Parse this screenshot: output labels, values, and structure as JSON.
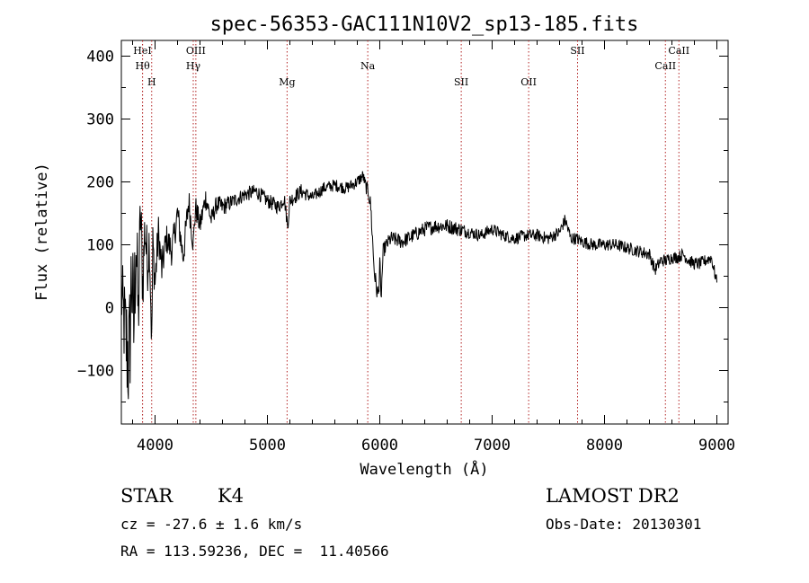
{
  "chart_data": {
    "type": "line",
    "title": "spec-56353-GAC111N10V2_sp13-185.fits",
    "xlabel": "Wavelength (Å)",
    "ylabel": "Flux (relative)",
    "xlim": [
      3700,
      9100
    ],
    "ylim": [
      -185,
      425
    ],
    "x_ticks": [
      4000,
      5000,
      6000,
      7000,
      8000,
      9000
    ],
    "y_ticks": [
      -100,
      0,
      100,
      200,
      300,
      400
    ],
    "grid": false,
    "series": [
      {
        "color": "#000000",
        "x": [
          3700,
          3740,
          3770,
          3790,
          3810,
          3830,
          3850,
          3870,
          3890,
          3910,
          3930,
          3950,
          3970,
          3980,
          4000,
          4030,
          4060,
          4100,
          4150,
          4200,
          4250,
          4300,
          4340,
          4360,
          4400,
          4450,
          4500,
          4550,
          4600,
          4700,
          4800,
          4900,
          5000,
          5100,
          5150,
          5180,
          5200,
          5300,
          5400,
          5500,
          5600,
          5700,
          5800,
          5850,
          5880,
          5900,
          5920,
          5950,
          5970,
          5990,
          6000,
          6010,
          6030,
          6060,
          6100,
          6200,
          6300,
          6400,
          6500,
          6600,
          6700,
          6800,
          6900,
          7000,
          7100,
          7200,
          7300,
          7400,
          7500,
          7600,
          7650,
          7700,
          7750,
          7800,
          7900,
          8000,
          8100,
          8200,
          8300,
          8400,
          8450,
          8500,
          8550,
          8600,
          8650,
          8700,
          8750,
          8800,
          8850,
          8900,
          8950,
          9000
        ],
        "y": [
          20,
          -50,
          -90,
          60,
          -40,
          120,
          -20,
          150,
          40,
          130,
          70,
          110,
          -60,
          100,
          40,
          120,
          60,
          110,
          90,
          150,
          80,
          170,
          100,
          160,
          130,
          175,
          140,
          165,
          160,
          170,
          180,
          185,
          170,
          160,
          175,
          130,
          170,
          185,
          175,
          190,
          195,
          190,
          200,
          210,
          190,
          185,
          160,
          60,
          30,
          20,
          80,
          10,
          90,
          100,
          110,
          105,
          115,
          125,
          130,
          130,
          125,
          120,
          115,
          125,
          115,
          110,
          115,
          115,
          110,
          120,
          140,
          110,
          110,
          105,
          100,
          100,
          100,
          95,
          90,
          85,
          60,
          75,
          75,
          80,
          80,
          85,
          75,
          70,
          70,
          75,
          80,
          40
        ],
        "noise": [
          60,
          90,
          120,
          110,
          100,
          100,
          80,
          70,
          60,
          60,
          55,
          50,
          40,
          40,
          35,
          30,
          30,
          25,
          25,
          25,
          25,
          25,
          20,
          20,
          20,
          18,
          15,
          15,
          15,
          12,
          12,
          12,
          12,
          12,
          12,
          12,
          12,
          12,
          10,
          10,
          10,
          10,
          10,
          10,
          10,
          15,
          15,
          15,
          15,
          15,
          15,
          15,
          12,
          12,
          12,
          12,
          12,
          12,
          12,
          12,
          12,
          10,
          10,
          10,
          10,
          10,
          10,
          10,
          10,
          10,
          10,
          10,
          10,
          10,
          10,
          10,
          10,
          10,
          10,
          10,
          10,
          10,
          10,
          10,
          10,
          10,
          10,
          10,
          10,
          10,
          10,
          10
        ]
      }
    ],
    "lines": [
      {
        "label": "HeI",
        "x": 3888,
        "row": 0,
        "side": "left"
      },
      {
        "label": "Hθ",
        "x": 3889,
        "row": 1,
        "side": "left"
      },
      {
        "label": "H",
        "x": 3970,
        "row": 2,
        "side": "left"
      },
      {
        "label": "OIII",
        "x": 4363,
        "row": 0,
        "side": "left"
      },
      {
        "label": "Hγ",
        "x": 4340,
        "row": 1,
        "side": "left"
      },
      {
        "label": "Mg",
        "x": 5175,
        "row": 2,
        "side": "left"
      },
      {
        "label": "Na",
        "x": 5893,
        "row": 1,
        "side": "left"
      },
      {
        "label": "SII",
        "x": 6725,
        "row": 2,
        "side": "left"
      },
      {
        "label": "OII",
        "x": 7325,
        "row": 2,
        "side": "left"
      },
      {
        "label": "SII",
        "x": 7760,
        "row": 0,
        "side": "left"
      },
      {
        "label": "CaII",
        "x": 8542,
        "row": 1,
        "side": "left"
      },
      {
        "label": "CaII",
        "x": 8662,
        "row": 0,
        "side": "left"
      }
    ]
  },
  "info": {
    "class_label": "STAR",
    "subclass_label": "K4",
    "survey_label": "LAMOST DR2",
    "cz_text": "cz = -27.6 ± 1.6 km/s",
    "obs_date_text": "Obs-Date: 20130301",
    "coords_text": "RA = 113.59236, DEC =  11.40566"
  }
}
